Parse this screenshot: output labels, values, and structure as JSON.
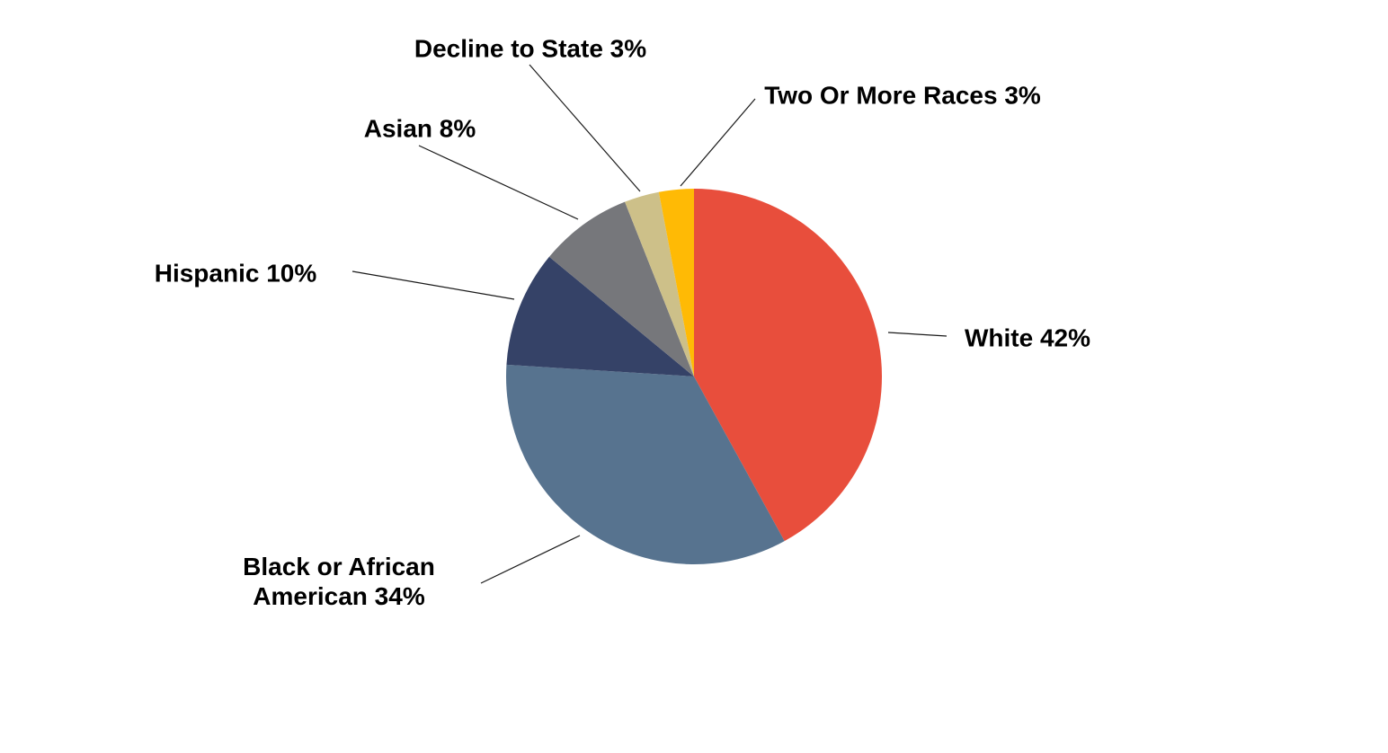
{
  "chart_data": {
    "type": "pie",
    "title": "",
    "start_angle_deg": 0,
    "direction": "clockwise",
    "legend_position": "none",
    "labels_style": "outside callouts with leader lines",
    "background_color": "#FFFFFF",
    "text_color": "#000000",
    "total": 100,
    "slices": [
      {
        "label": "White",
        "value": 42,
        "color": "#E84E3C",
        "callout": "White 42%"
      },
      {
        "label": "Black or African American",
        "value": 34,
        "color": "#57738F",
        "callout": "Black or African\nAmerican 34%"
      },
      {
        "label": "Hispanic",
        "value": 10,
        "color": "#354267",
        "callout": "Hispanic 10%"
      },
      {
        "label": "Asian",
        "value": 8,
        "color": "#76777B",
        "callout": "Asian 8%"
      },
      {
        "label": "Decline to State",
        "value": 3,
        "color": "#CDC089",
        "callout": "Decline to State 3%"
      },
      {
        "label": "Two Or More Races",
        "value": 3,
        "color": "#FFBA05",
        "callout": "Two Or More Races 3%"
      }
    ]
  }
}
